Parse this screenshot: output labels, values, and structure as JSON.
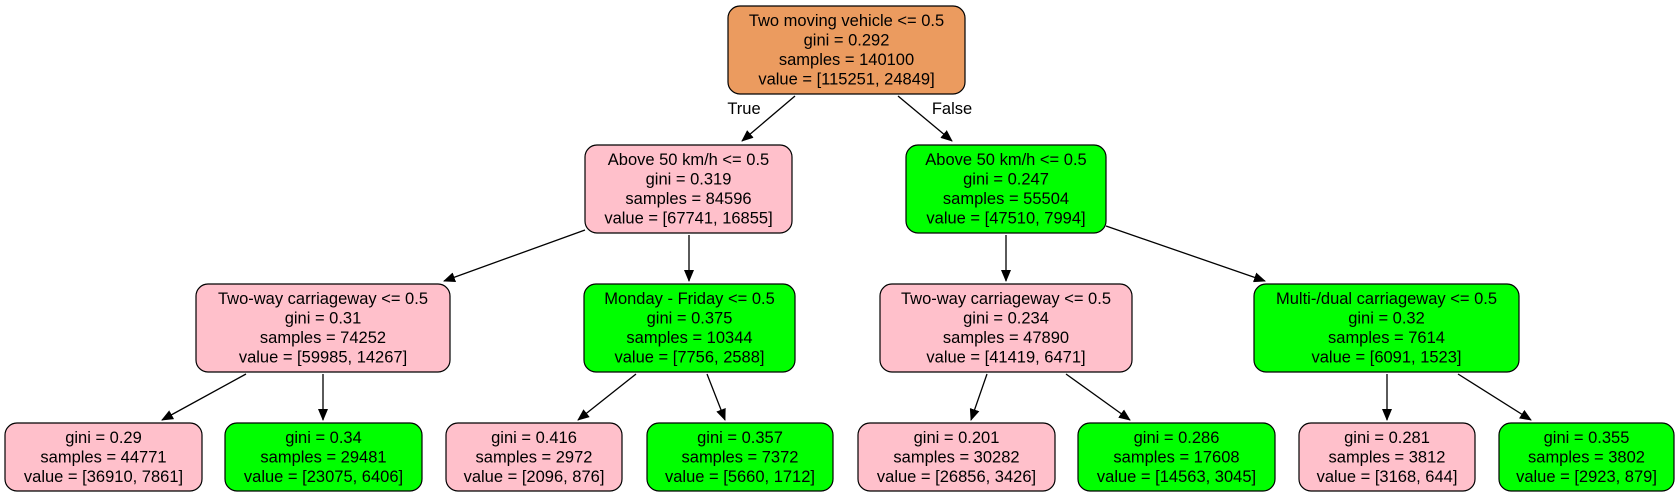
{
  "tree": {
    "colors": {
      "root": "#eb9b5f",
      "class_0": "#ffc0cb",
      "class_1": "#00ff00",
      "stroke": "#000000"
    },
    "edge_labels": {
      "true_label": "True",
      "false_label": "False"
    },
    "nodes": [
      {
        "id": "n0",
        "fill": "root",
        "lines": [
          "Two moving vehicle <= 0.5",
          "gini = 0.292",
          "samples = 140100",
          "value = [115251, 24849]"
        ]
      },
      {
        "id": "n1",
        "fill": "class_0",
        "lines": [
          "Above 50 km/h <= 0.5",
          "gini = 0.319",
          "samples = 84596",
          "value = [67741, 16855]"
        ]
      },
      {
        "id": "n2",
        "fill": "class_1",
        "lines": [
          "Above 50 km/h <= 0.5",
          "gini = 0.247",
          "samples = 55504",
          "value = [47510, 7994]"
        ]
      },
      {
        "id": "n3",
        "fill": "class_0",
        "lines": [
          "Two-way carriageway <= 0.5",
          "gini = 0.31",
          "samples = 74252",
          "value = [59985, 14267]"
        ]
      },
      {
        "id": "n4",
        "fill": "class_1",
        "lines": [
          "Monday - Friday <= 0.5",
          "gini = 0.375",
          "samples = 10344",
          "value = [7756, 2588]"
        ]
      },
      {
        "id": "n5",
        "fill": "class_0",
        "lines": [
          "Two-way carriageway <= 0.5",
          "gini = 0.234",
          "samples = 47890",
          "value = [41419, 6471]"
        ]
      },
      {
        "id": "n6",
        "fill": "class_1",
        "lines": [
          "Multi-/dual carriageway <= 0.5",
          "gini = 0.32",
          "samples = 7614",
          "value = [6091, 1523]"
        ]
      },
      {
        "id": "n7",
        "fill": "class_0",
        "lines": [
          "gini = 0.29",
          "samples = 44771",
          "value = [36910, 7861]"
        ]
      },
      {
        "id": "n8",
        "fill": "class_1",
        "lines": [
          "gini = 0.34",
          "samples = 29481",
          "value = [23075, 6406]"
        ]
      },
      {
        "id": "n9",
        "fill": "class_0",
        "lines": [
          "gini = 0.416",
          "samples = 2972",
          "value = [2096, 876]"
        ]
      },
      {
        "id": "n10",
        "fill": "class_1",
        "lines": [
          "gini = 0.357",
          "samples = 7372",
          "value = [5660, 1712]"
        ]
      },
      {
        "id": "n11",
        "fill": "class_0",
        "lines": [
          "gini = 0.201",
          "samples = 30282",
          "value = [26856, 3426]"
        ]
      },
      {
        "id": "n12",
        "fill": "class_1",
        "lines": [
          "gini = 0.286",
          "samples = 17608",
          "value = [14563, 3045]"
        ]
      },
      {
        "id": "n13",
        "fill": "class_0",
        "lines": [
          "gini = 0.281",
          "samples = 3812",
          "value = [3168, 644]"
        ]
      },
      {
        "id": "n14",
        "fill": "class_1",
        "lines": [
          "gini = 0.355",
          "samples = 3802",
          "value = [2923, 879]"
        ]
      }
    ],
    "edges": [
      {
        "from": "n0",
        "to": "n1",
        "label": "true_label"
      },
      {
        "from": "n0",
        "to": "n2",
        "label": "false_label"
      },
      {
        "from": "n1",
        "to": "n3"
      },
      {
        "from": "n1",
        "to": "n4"
      },
      {
        "from": "n2",
        "to": "n5"
      },
      {
        "from": "n2",
        "to": "n6"
      },
      {
        "from": "n3",
        "to": "n7"
      },
      {
        "from": "n3",
        "to": "n8"
      },
      {
        "from": "n4",
        "to": "n9"
      },
      {
        "from": "n4",
        "to": "n10"
      },
      {
        "from": "n5",
        "to": "n11"
      },
      {
        "from": "n5",
        "to": "n12"
      },
      {
        "from": "n6",
        "to": "n13"
      },
      {
        "from": "n6",
        "to": "n14"
      }
    ]
  }
}
